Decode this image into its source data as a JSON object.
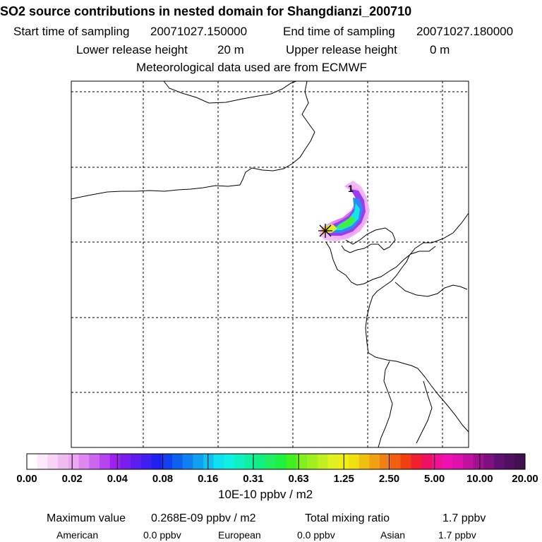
{
  "title": "SO2 source contributions in nested domain for Shangdianzi_200710",
  "sampling": {
    "start_label": "Start time of sampling",
    "start_value": "20071027.150000",
    "end_label": "End time of sampling",
    "end_value": "20071027.180000"
  },
  "release": {
    "lower_label": "Lower release height",
    "lower_value": "20 m",
    "upper_label": "Upper release height",
    "upper_value": "0 m"
  },
  "met_note": "Meteorological data used are from ECMWF",
  "plume_label": "1",
  "colorbar": {
    "ticks": [
      "0.00",
      "0.02",
      "0.04",
      "0.08",
      "0.16",
      "0.31",
      "0.63",
      "1.25",
      "2.50",
      "5.00",
      "10.00",
      "20.00"
    ],
    "unit_label": "10E-10 ppbv / m2",
    "colors": [
      "#ffffff",
      "#fbe8fb",
      "#f6d2f6",
      "#f0bcf0",
      "#eaa6f0",
      "#dd88f0",
      "#cc66f0",
      "#b844f0",
      "#a020f0",
      "#7a1ef0",
      "#5c1ef0",
      "#3e1ef0",
      "#2020f0",
      "#1040f0",
      "#1060f0",
      "#1080f0",
      "#10a0f0",
      "#10c0f0",
      "#10e0f0",
      "#10f0e0",
      "#10f0c0",
      "#10f0a0",
      "#10f080",
      "#20f060",
      "#20f040",
      "#40f020",
      "#80f020",
      "#a0f020",
      "#c0f020",
      "#e0f020",
      "#f0f010",
      "#f0e010",
      "#f0c010",
      "#f0a010",
      "#f08010",
      "#f06010",
      "#f04010",
      "#f02030",
      "#f01060",
      "#f01090",
      "#f010b0",
      "#e010b0",
      "#c010a0",
      "#a01090",
      "#801080",
      "#601070",
      "#501060",
      "#401050"
    ]
  },
  "footer": {
    "max_label": "Maximum value",
    "max_value": "0.268E-09 ppbv / m2",
    "total_label": "Total mixing ratio",
    "total_value": "1.7 ppbv",
    "regions": [
      {
        "name": "American",
        "value": "0.0 ppbv"
      },
      {
        "name": "European",
        "value": "0.0 ppbv"
      },
      {
        "name": "Asian",
        "value": "1.7 ppbv"
      }
    ]
  },
  "chart_data": {
    "type": "heatmap",
    "title": "SO2 source contributions in nested domain for Shangdianzi_200710",
    "grid": true,
    "colorbar_levels": [
      0.0,
      0.02,
      0.04,
      0.08,
      0.16,
      0.31,
      0.63,
      1.25,
      2.5,
      5.0,
      10.0,
      20.0
    ],
    "colorbar_unit": "10E-10 ppbv / m2",
    "max_value": "0.268E-09 ppbv / m2",
    "total_mixing_ratio_ppbv": 1.7,
    "contributions_ppbv": {
      "American": 0.0,
      "European": 0.0,
      "Asian": 1.7
    },
    "receptor_marker": "star",
    "plume_label": "1"
  }
}
